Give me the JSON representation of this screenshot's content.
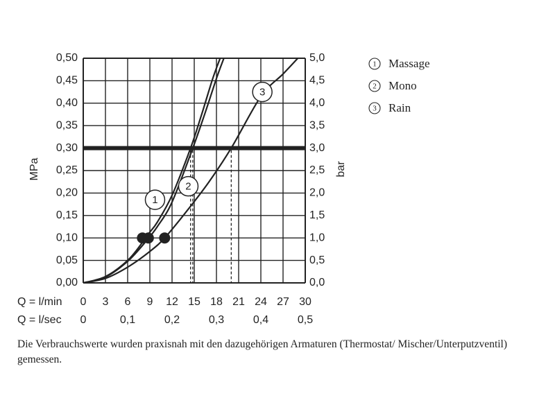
{
  "chart_data": {
    "type": "line",
    "title": "",
    "x": {
      "rows": [
        {
          "label": "Q = l/min",
          "ticks": [
            "0",
            "3",
            "6",
            "9",
            "12",
            "15",
            "18",
            "21",
            "24",
            "27",
            "30"
          ]
        },
        {
          "label": "Q = l/sec",
          "ticks": [
            "0",
            "0,1",
            "0,2",
            "0,3",
            "0,4",
            "0,5"
          ]
        }
      ],
      "range": [
        0,
        30
      ]
    },
    "y_left": {
      "label": "MPa",
      "range": [
        0,
        0.5
      ],
      "ticks": [
        "0,00",
        "0,05",
        "0,10",
        "0,15",
        "0,20",
        "0,25",
        "0,30",
        "0,35",
        "0,40",
        "0,45",
        "0,50"
      ]
    },
    "y_right": {
      "label": "bar",
      "range": [
        0,
        5
      ],
      "ticks": [
        "0,0",
        "0,5",
        "1,0",
        "1,5",
        "2,0",
        "2,5",
        "3,0",
        "3,5",
        "4,0",
        "4,5",
        "5,0"
      ]
    },
    "grid": true,
    "reference_line": {
      "y": 0.3
    },
    "series": [
      {
        "id": "1",
        "name": "Massage",
        "x": [
          0,
          3,
          6,
          8,
          9,
          10,
          12,
          14.5,
          16,
          17.5,
          18.5
        ],
        "y": [
          0,
          0.014,
          0.05,
          0.09,
          0.113,
          0.135,
          0.195,
          0.3,
          0.375,
          0.455,
          0.5
        ]
      },
      {
        "id": "2",
        "name": "Mono",
        "x": [
          0,
          3,
          6,
          8.5,
          10,
          12,
          14.8,
          16.5,
          18,
          19
        ],
        "y": [
          0,
          0.013,
          0.048,
          0.093,
          0.125,
          0.18,
          0.3,
          0.38,
          0.455,
          0.5
        ]
      },
      {
        "id": "3",
        "name": "Rain",
        "x": [
          0,
          3,
          6,
          9,
          11,
          14,
          17,
          20,
          24,
          27,
          29
        ],
        "y": [
          0,
          0.01,
          0.035,
          0.07,
          0.1,
          0.16,
          0.225,
          0.3,
          0.415,
          0.465,
          0.5
        ]
      }
    ],
    "markers": [
      {
        "series": "1",
        "x": 8.0,
        "y": 0.1
      },
      {
        "series": "2",
        "x": 8.8,
        "y": 0.1
      },
      {
        "series": "3",
        "x": 11.0,
        "y": 0.1
      }
    ],
    "dashed_verticals": [
      {
        "series": "1",
        "x": 14.5
      },
      {
        "series": "2",
        "x": 14.8
      },
      {
        "series": "3",
        "x": 20.0
      }
    ],
    "curve_labels": [
      {
        "text": "1",
        "x": 9.7,
        "y": 0.185
      },
      {
        "text": "2",
        "x": 14.2,
        "y": 0.215
      },
      {
        "text": "3",
        "x": 24.2,
        "y": 0.425
      }
    ],
    "legend": {
      "placement": "top-right",
      "items": [
        {
          "num": "1",
          "label": "Massage"
        },
        {
          "num": "2",
          "label": "Mono"
        },
        {
          "num": "3",
          "label": "Rain"
        }
      ]
    }
  },
  "footnote": "Die Verbrauchswerte wurden praxisnah mit den dazugehörigen Armaturen (Thermostat/ Mischer/Unterputzventil) gemessen."
}
